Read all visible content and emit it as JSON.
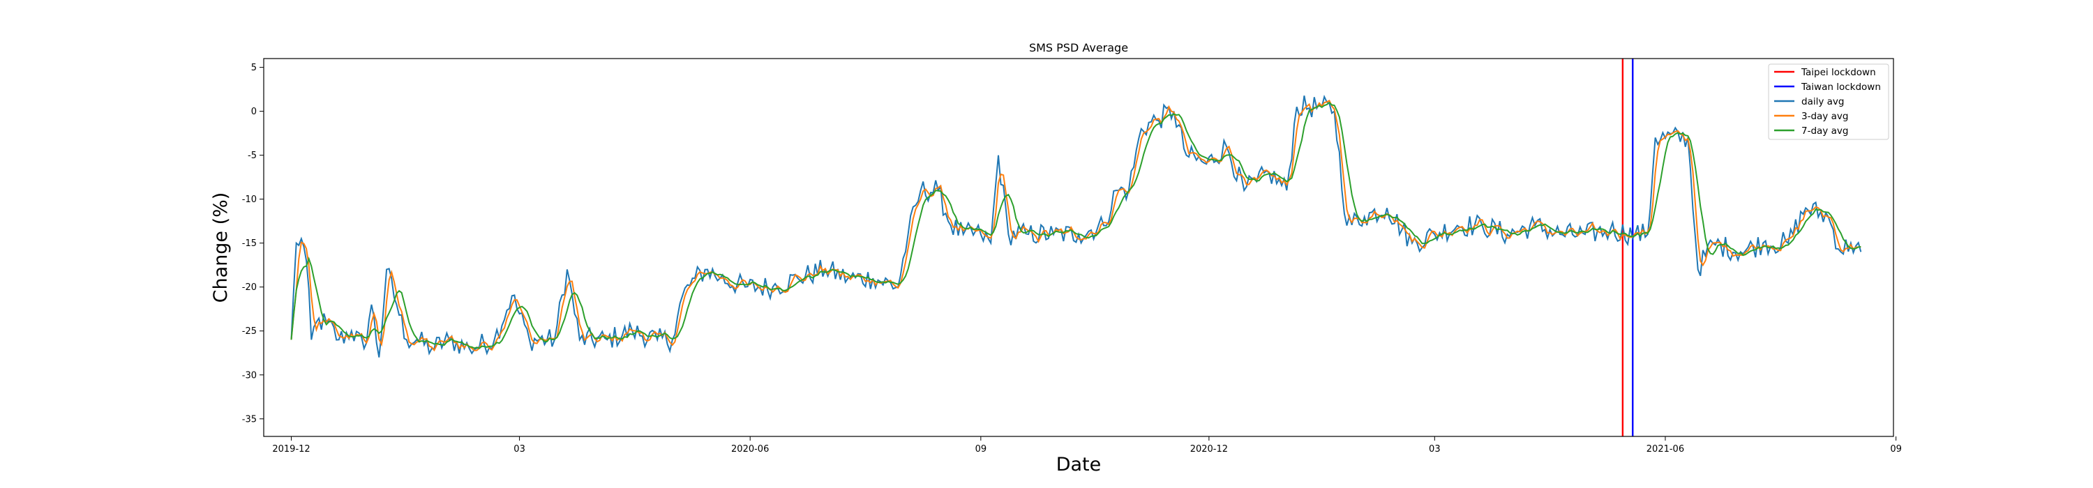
{
  "chart_data": {
    "type": "line",
    "title": "SMS PSD Average",
    "xlabel": "Date",
    "ylabel": "Change (%)",
    "xlim": [
      "2019-11-20",
      "2021-08-31"
    ],
    "ylim": [
      -37,
      6
    ],
    "x_ticks": [
      {
        "date": "2019-12-01",
        "label": "2019-12"
      },
      {
        "date": "2020-03-01",
        "label": "03"
      },
      {
        "date": "2020-06-01",
        "label": "2020-06"
      },
      {
        "date": "2020-09-01",
        "label": "09"
      },
      {
        "date": "2020-12-01",
        "label": "2020-12"
      },
      {
        "date": "2021-03-01",
        "label": "03"
      },
      {
        "date": "2021-06-01",
        "label": "2021-06"
      },
      {
        "date": "2021-09-01",
        "label": "09"
      }
    ],
    "y_ticks": [
      5,
      0,
      -5,
      -10,
      -15,
      -20,
      -25,
      -30,
      -35
    ],
    "grid": false,
    "legend_position": "top-right",
    "legend": [
      "Taipei lockdown",
      "Taiwan lockdown",
      "daily avg",
      "3-day avg",
      "7-day avg"
    ],
    "vertical_lines": [
      {
        "name": "Taipei lockdown",
        "date": "2021-05-15",
        "color": "#ff0000"
      },
      {
        "name": "Taiwan lockdown",
        "date": "2021-05-19",
        "color": "#0000ff"
      }
    ],
    "daily": {
      "name": "daily avg",
      "color": "#1f77b4",
      "start_date": "2019-12-01",
      "points": [
        [
          "2019-12-01",
          -26
        ],
        [
          "2019-12-03",
          -15
        ],
        [
          "2019-12-05",
          -14.5
        ],
        [
          "2019-12-07",
          -17
        ],
        [
          "2019-12-09",
          -26
        ],
        [
          "2019-12-11",
          -24
        ],
        [
          "2019-12-15",
          -24
        ],
        [
          "2019-12-20",
          -26
        ],
        [
          "2019-12-25",
          -25
        ],
        [
          "2019-12-30",
          -27
        ],
        [
          "2020-01-02",
          -22
        ],
        [
          "2020-01-05",
          -28
        ],
        [
          "2020-01-08",
          -18
        ],
        [
          "2020-01-12",
          -22
        ],
        [
          "2020-01-16",
          -26
        ],
        [
          "2020-01-20",
          -26
        ],
        [
          "2020-01-26",
          -27
        ],
        [
          "2020-02-02",
          -26
        ],
        [
          "2020-02-10",
          -27
        ],
        [
          "2020-02-20",
          -26
        ],
        [
          "2020-02-27",
          -21
        ],
        [
          "2020-03-05",
          -26
        ],
        [
          "2020-03-15",
          -26
        ],
        [
          "2020-03-20",
          -18
        ],
        [
          "2020-03-25",
          -26
        ],
        [
          "2020-04-05",
          -26
        ],
        [
          "2020-04-15",
          -25
        ],
        [
          "2020-04-25",
          -26
        ],
        [
          "2020-05-01",
          -26
        ],
        [
          "2020-05-05",
          -21
        ],
        [
          "2020-05-10",
          -19
        ],
        [
          "2020-05-15",
          -18
        ],
        [
          "2020-05-20",
          -19
        ],
        [
          "2020-05-30",
          -20
        ],
        [
          "2020-06-10",
          -20
        ],
        [
          "2020-06-20",
          -19
        ],
        [
          "2020-07-01",
          -18
        ],
        [
          "2020-07-10",
          -19
        ],
        [
          "2020-07-20",
          -19
        ],
        [
          "2020-07-30",
          -20
        ],
        [
          "2020-08-03",
          -14
        ],
        [
          "2020-08-08",
          -9
        ],
        [
          "2020-08-15",
          -9
        ],
        [
          "2020-08-20",
          -13
        ],
        [
          "2020-08-25",
          -14
        ],
        [
          "2020-09-01",
          -14
        ],
        [
          "2020-09-05",
          -15
        ],
        [
          "2020-09-08",
          -5
        ],
        [
          "2020-09-12",
          -14
        ],
        [
          "2020-09-20",
          -14
        ],
        [
          "2020-09-30",
          -14
        ],
        [
          "2020-10-10",
          -14
        ],
        [
          "2020-10-20",
          -13
        ],
        [
          "2020-10-25",
          -9
        ],
        [
          "2020-10-30",
          -9
        ],
        [
          "2020-11-04",
          -2
        ],
        [
          "2020-11-10",
          -1
        ],
        [
          "2020-11-17",
          0
        ],
        [
          "2020-11-22",
          -5
        ],
        [
          "2020-11-30",
          -6
        ],
        [
          "2020-12-08",
          -4
        ],
        [
          "2020-12-15",
          -9
        ],
        [
          "2020-12-20",
          -8
        ],
        [
          "2020-12-25",
          -7
        ],
        [
          "2021-01-01",
          -9
        ],
        [
          "2021-01-05",
          0.5
        ],
        [
          "2021-01-15",
          0.5
        ],
        [
          "2021-01-20",
          0
        ],
        [
          "2021-01-25",
          -13
        ],
        [
          "2021-02-01",
          -12
        ],
        [
          "2021-02-10",
          -11
        ],
        [
          "2021-02-20",
          -15
        ],
        [
          "2021-03-01",
          -14
        ],
        [
          "2021-03-10",
          -13
        ],
        [
          "2021-03-20",
          -13
        ],
        [
          "2021-03-30",
          -14
        ],
        [
          "2021-04-10",
          -13
        ],
        [
          "2021-04-20",
          -14
        ],
        [
          "2021-04-30",
          -14
        ],
        [
          "2021-05-10",
          -13.5
        ],
        [
          "2021-05-20",
          -14
        ],
        [
          "2021-05-25",
          -14
        ],
        [
          "2021-05-28",
          -3
        ],
        [
          "2021-06-10",
          -3
        ],
        [
          "2021-06-14",
          -18
        ],
        [
          "2021-06-20",
          -15
        ],
        [
          "2021-07-01",
          -16
        ],
        [
          "2021-07-10",
          -15
        ],
        [
          "2021-07-20",
          -15
        ],
        [
          "2021-07-27",
          -11
        ],
        [
          "2021-08-05",
          -12
        ],
        [
          "2021-08-10",
          -16
        ],
        [
          "2021-08-14",
          -15
        ],
        [
          "2021-08-18",
          -16
        ]
      ]
    },
    "three_day": {
      "name": "3-day avg",
      "color": "#ff7f0e",
      "window": 3
    },
    "seven_day": {
      "name": "7-day avg",
      "color": "#2ca02c",
      "window": 7
    }
  }
}
